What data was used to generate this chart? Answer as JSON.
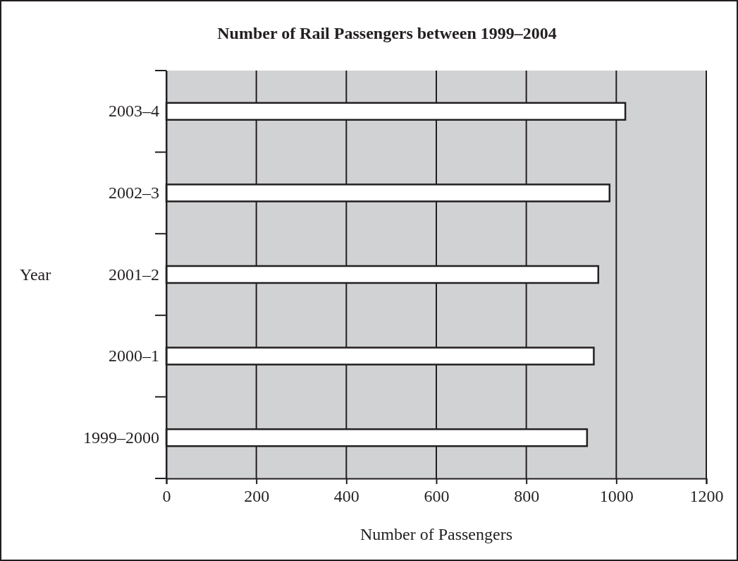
{
  "chart_data": {
    "type": "bar",
    "orientation": "horizontal",
    "title": "Number of Rail Passengers between 1999–2004",
    "xlabel": "Number of Passengers",
    "ylabel": "Year",
    "categories": [
      "2003–4",
      "2002–3",
      "2001–2",
      "2000–1",
      "1999–2000"
    ],
    "values": [
      1020,
      985,
      960,
      950,
      935
    ],
    "color": "#ffffff",
    "xlim": [
      0,
      1200
    ],
    "xticks": [
      0,
      200,
      400,
      600,
      800,
      1000,
      1200
    ],
    "grid": "x"
  }
}
